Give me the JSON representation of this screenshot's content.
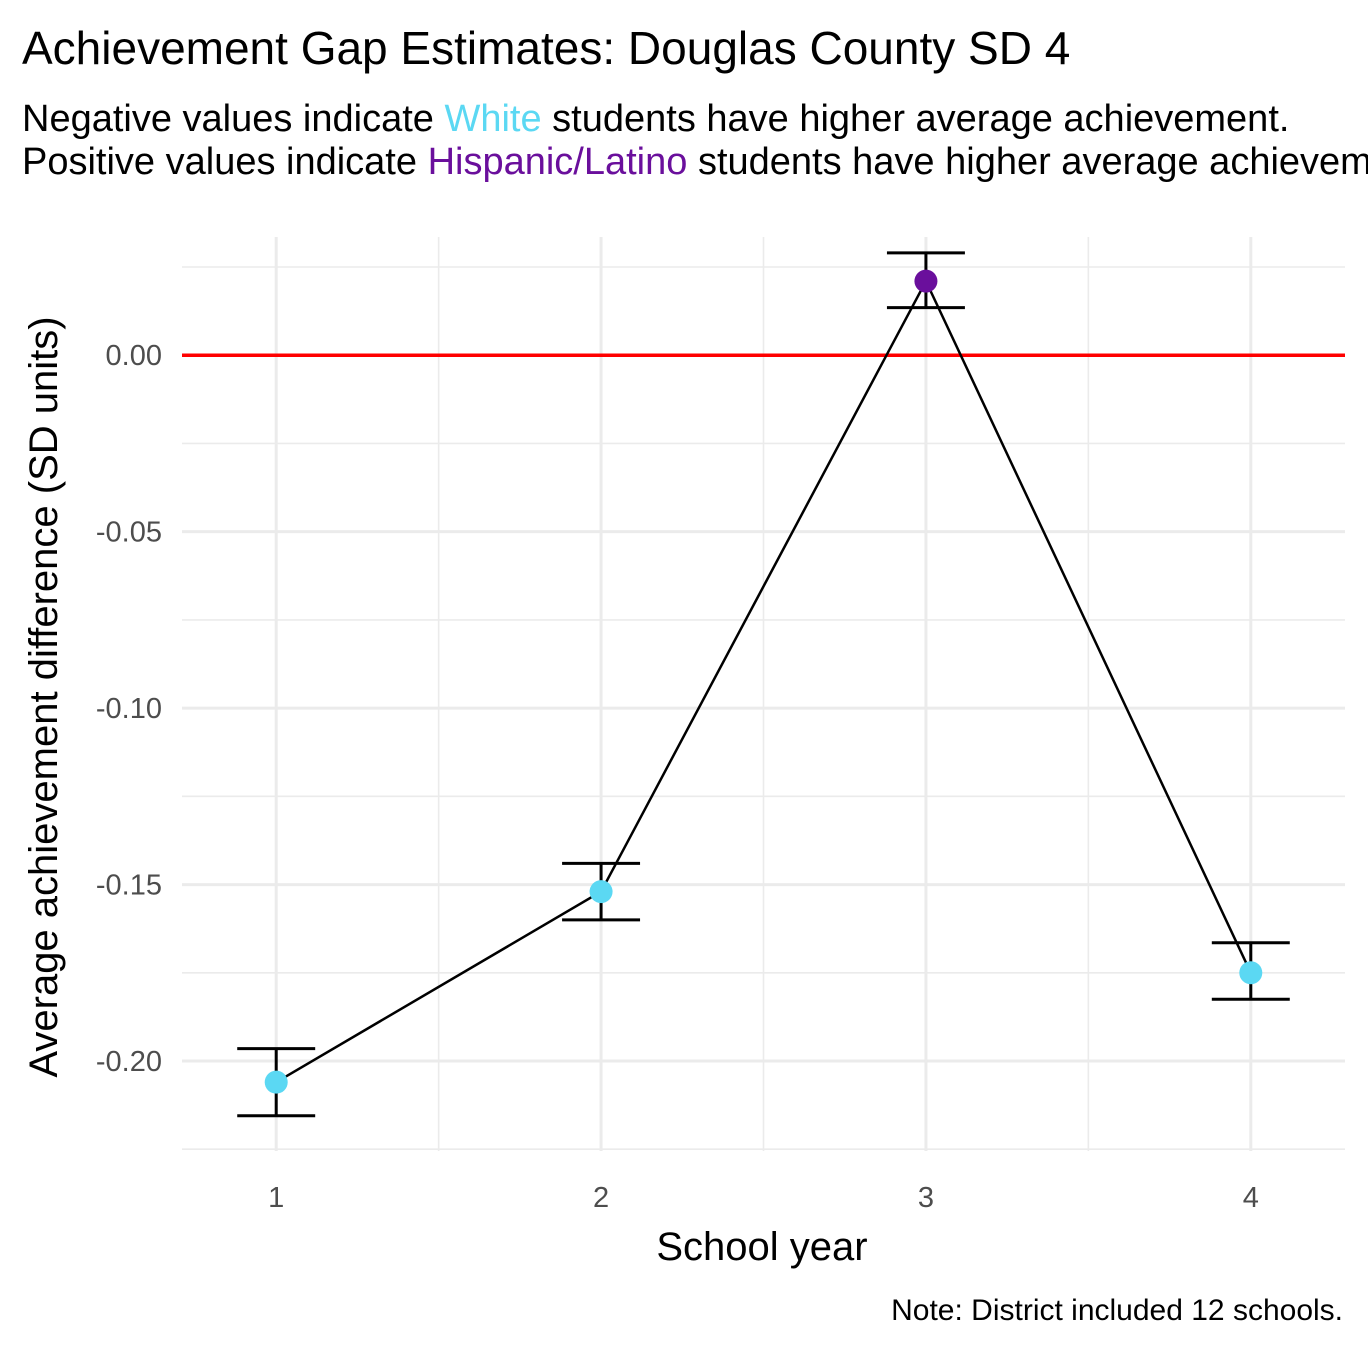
{
  "chart_data": {
    "type": "scatter",
    "title": "Achievement Gap Estimates: Douglas County SD 4",
    "subtitle": {
      "line1_pre": "Negative values indicate ",
      "line1_group": "White",
      "line1_post": " students have higher average achievement.",
      "line2_pre": "Positive values indicate ",
      "line2_group": "Hispanic/Latino",
      "line2_post": " students have higher average achievement."
    },
    "xlabel": "School year",
    "ylabel": "Average achievement difference (SD units)",
    "caption": "Note: District included 12 schools.",
    "x_ticks": [
      "1",
      "2",
      "3",
      "4"
    ],
    "y_ticks": [
      "0.00",
      "-0.05",
      "-0.10",
      "-0.15",
      "-0.20"
    ],
    "y_tick_values": [
      0.0,
      -0.05,
      -0.1,
      -0.15,
      -0.2
    ],
    "xlim": [
      0.71,
      4.29
    ],
    "ylim": [
      -0.2255,
      0.0335
    ],
    "reference_line": {
      "y": 0.0,
      "color": "#ff0000"
    },
    "colors": {
      "White": "#5bd8f3",
      "Hispanic/Latino": "#6a0f9c",
      "line": "#000000",
      "grid": "#ebebeb"
    },
    "grid": true,
    "legend": "none",
    "points": [
      {
        "x": 1,
        "y": -0.206,
        "ymin": -0.2155,
        "ymax": -0.1965,
        "group": "White"
      },
      {
        "x": 2,
        "y": -0.152,
        "ymin": -0.16,
        "ymax": -0.144,
        "group": "White"
      },
      {
        "x": 3,
        "y": 0.021,
        "ymin": 0.0135,
        "ymax": 0.029,
        "group": "Hispanic/Latino"
      },
      {
        "x": 4,
        "y": -0.175,
        "ymin": -0.1825,
        "ymax": -0.1665,
        "group": "White"
      }
    ]
  }
}
